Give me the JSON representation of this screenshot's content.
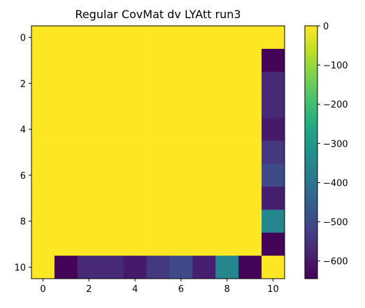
{
  "chart_data": {
    "type": "heatmap",
    "title": "Regular CovMat dv LYAtt run3",
    "xlabel": "",
    "ylabel": "",
    "colormap": "viridis",
    "grid": false,
    "rows": 11,
    "cols": 11,
    "x_range": [
      -0.5,
      10.5
    ],
    "y_range": [
      10.5,
      -0.5
    ],
    "x_ticks": [
      "0",
      "2",
      "4",
      "6",
      "8",
      "10"
    ],
    "y_ticks": [
      "0",
      "2",
      "4",
      "6",
      "8",
      "10"
    ],
    "color_range": [
      -645,
      0
    ],
    "colorbar_ticks": [
      "0",
      "−100",
      "−200",
      "−300",
      "−400",
      "−500",
      "−600"
    ],
    "colorbar_tick_values": [
      0,
      -100,
      -200,
      -300,
      -400,
      -500,
      -600
    ],
    "values": [
      [
        0,
        0,
        0,
        0,
        0,
        0,
        0,
        0,
        0,
        0,
        0
      ],
      [
        0,
        0,
        0,
        0,
        0,
        0,
        0,
        0,
        0,
        0,
        -640
      ],
      [
        0,
        0,
        0,
        0,
        0,
        0,
        0,
        0,
        0,
        0,
        -570
      ],
      [
        0,
        0,
        0,
        0,
        0,
        0,
        0,
        0,
        0,
        0,
        -570
      ],
      [
        0,
        0,
        0,
        0,
        0,
        0,
        0,
        0,
        0,
        0,
        -600
      ],
      [
        0,
        0,
        0,
        0,
        0,
        0,
        0,
        0,
        0,
        0,
        -540
      ],
      [
        0,
        0,
        0,
        0,
        0,
        0,
        0,
        0,
        0,
        0,
        -500
      ],
      [
        0,
        0,
        0,
        0,
        0,
        0,
        0,
        0,
        0,
        0,
        -590
      ],
      [
        0,
        0,
        0,
        0,
        0,
        0,
        0,
        0,
        0,
        0,
        -350
      ],
      [
        0,
        0,
        0,
        0,
        0,
        0,
        0,
        0,
        0,
        0,
        -640
      ],
      [
        0,
        -640,
        -570,
        -570,
        -600,
        -540,
        -500,
        -590,
        -350,
        -640,
        0
      ]
    ]
  }
}
